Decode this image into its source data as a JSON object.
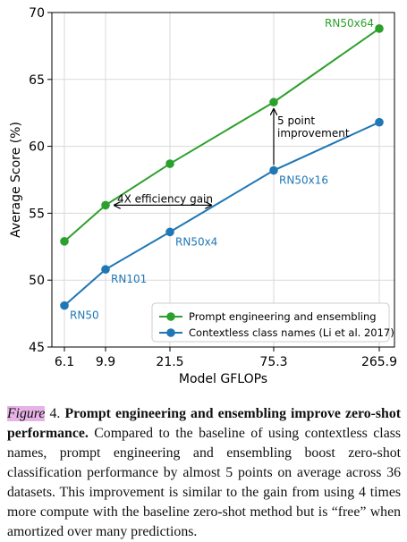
{
  "chart_data": {
    "type": "line",
    "xlabel": "Model GFLOPs",
    "ylabel": "Average Score (%)",
    "x_ticks": [
      "6.1",
      "9.9",
      "21.5",
      "75.3",
      "265.9"
    ],
    "ylim": [
      45,
      70
    ],
    "y_ticks": [
      45,
      50,
      55,
      60,
      65,
      70
    ],
    "grid": true,
    "legend_position": "lower-right",
    "series": [
      {
        "name": "Prompt engineering and ensembling",
        "color": "#2ca02c",
        "values": [
          52.9,
          55.6,
          58.7,
          63.3,
          68.8
        ]
      },
      {
        "name": "Contextless class names (Li et al. 2017)",
        "color": "#1f77b4",
        "values": [
          48.1,
          50.8,
          53.6,
          58.2,
          61.8
        ]
      }
    ],
    "point_labels": [
      "RN50",
      "RN101",
      "RN50x4",
      "RN50x16",
      "RN50x64"
    ],
    "annotations": {
      "efficiency": "4X efficiency gain",
      "improvement_line1": "5 point",
      "improvement_line2": "improvement"
    }
  },
  "caption": {
    "label": "Figure",
    "number": " 4. ",
    "title": "Prompt engineering and ensembling improve zero-shot performance.",
    "body": " Compared to the baseline of using contextless class names, prompt engineering and ensembling boost zero-shot classification performance by almost 5 points on average across 36 datasets. This improvement is similar to the gain from using 4 times more compute with the baseline zero-shot method but is “free” when amortized over many predictions."
  }
}
